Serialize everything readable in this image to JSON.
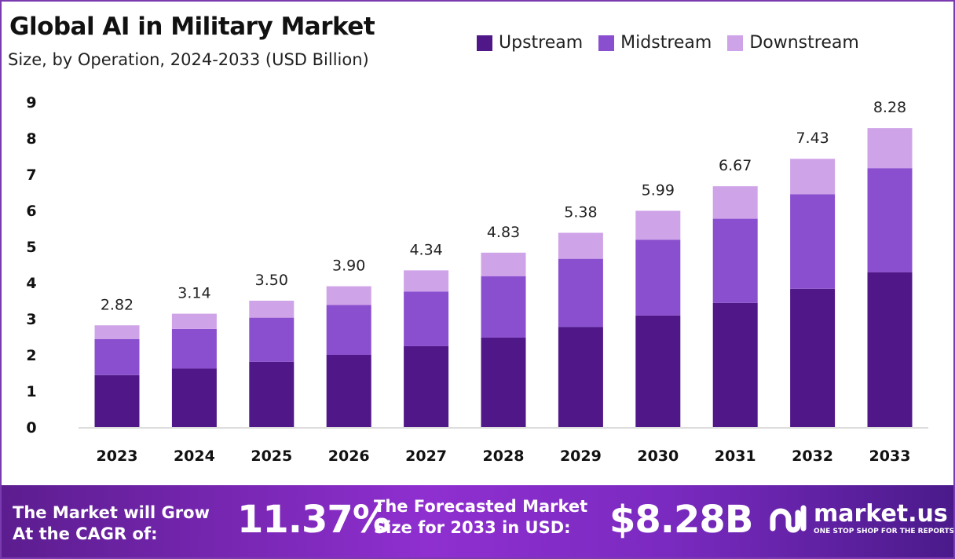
{
  "chart_data": {
    "type": "bar",
    "stacked": true,
    "title": "Global AI in Military Market",
    "subtitle": "Size, by Operation, 2024-2033 (USD Billion)",
    "categories": [
      "2023",
      "2024",
      "2025",
      "2026",
      "2027",
      "2028",
      "2029",
      "2030",
      "2031",
      "2032",
      "2033"
    ],
    "series": [
      {
        "name": "Upstream",
        "color": "#4f1787",
        "values": [
          1.44,
          1.62,
          1.81,
          2.0,
          2.24,
          2.48,
          2.77,
          3.09,
          3.44,
          3.83,
          4.29
        ]
      },
      {
        "name": "Midstream",
        "color": "#8a4fcf",
        "values": [
          1.0,
          1.1,
          1.22,
          1.38,
          1.51,
          1.7,
          1.89,
          2.1,
          2.33,
          2.62,
          2.88
        ]
      },
      {
        "name": "Downstream",
        "color": "#cfa3e8",
        "values": [
          0.38,
          0.42,
          0.47,
          0.52,
          0.59,
          0.65,
          0.72,
          0.8,
          0.9,
          0.98,
          1.11
        ]
      }
    ],
    "totals": [
      "2.82",
      "3.14",
      "3.50",
      "3.90",
      "4.34",
      "4.83",
      "5.38",
      "5.99",
      "6.67",
      "7.43",
      "8.28"
    ],
    "ylim": [
      0,
      9
    ],
    "yticks": [
      "0",
      "1",
      "2",
      "3",
      "4",
      "5",
      "6",
      "7",
      "8",
      "9"
    ],
    "grid": false,
    "legend": "top-right",
    "xlabel": "",
    "ylabel": ""
  },
  "footer": {
    "cagr_label_1": "The Market will Grow",
    "cagr_label_2": "At the CAGR of:",
    "cagr_value": "11.37%",
    "forecast_label_1": "The Forecasted Market",
    "forecast_label_2": "Size for 2033 in USD:",
    "forecast_value": "$8.28B",
    "brand": "market.us",
    "tagline": "ONE STOP SHOP FOR THE REPORTS"
  }
}
